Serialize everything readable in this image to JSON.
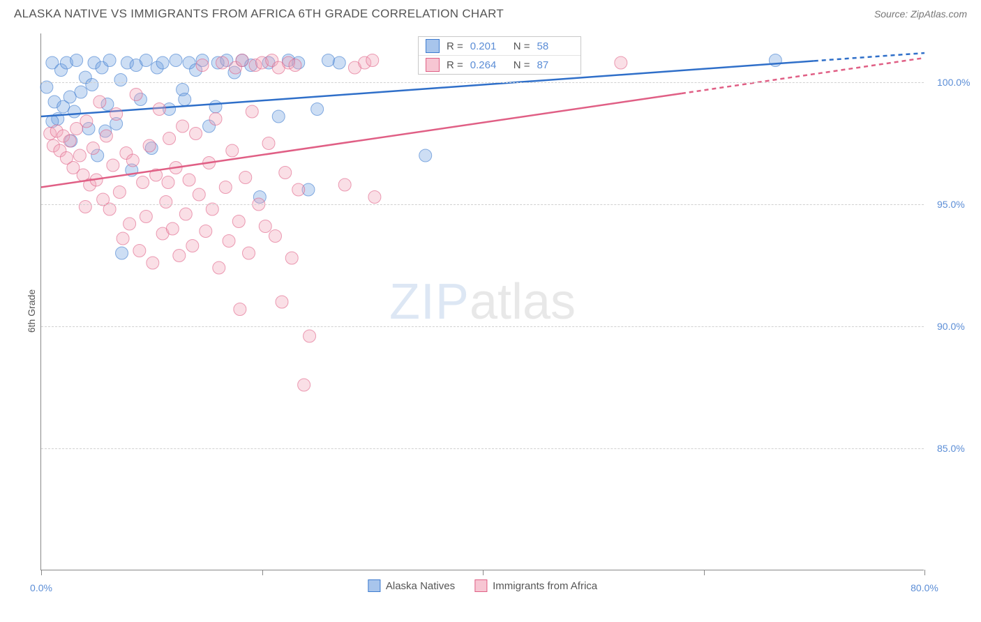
{
  "header": {
    "title": "ALASKA NATIVE VS IMMIGRANTS FROM AFRICA 6TH GRADE CORRELATION CHART",
    "source": "Source: ZipAtlas.com"
  },
  "chart": {
    "type": "scatter",
    "y_label": "6th Grade",
    "xlim": [
      0,
      80
    ],
    "ylim": [
      80,
      102
    ],
    "x_ticks": [
      0,
      20,
      40,
      60,
      80
    ],
    "x_tick_labels": [
      "0.0%",
      "",
      "",
      "",
      "80.0%"
    ],
    "y_gridlines": [
      85,
      90,
      95,
      100
    ],
    "y_tick_labels": [
      "85.0%",
      "90.0%",
      "95.0%",
      "100.0%"
    ],
    "background_color": "#ffffff",
    "grid_color": "#d0d0d0",
    "axis_color": "#888888",
    "tick_label_color": "#5b8dd6",
    "marker_radius": 9,
    "marker_opacity": 0.35,
    "series": [
      {
        "name": "Alaska Natives",
        "color": "#6fa0e0",
        "stroke": "#3d7bcf",
        "trend": {
          "x1": 0,
          "y1": 98.6,
          "x2": 80,
          "y2": 101.2,
          "dash_from_x": 70,
          "color": "#2f6fc9",
          "width": 2.5
        },
        "points": [
          [
            0.5,
            99.8
          ],
          [
            1.0,
            100.8
          ],
          [
            1.2,
            99.2
          ],
          [
            1.5,
            98.5
          ],
          [
            1.8,
            100.5
          ],
          [
            2.0,
            99.0
          ],
          [
            2.3,
            100.8
          ],
          [
            2.6,
            99.4
          ],
          [
            3.0,
            98.8
          ],
          [
            3.2,
            100.9
          ],
          [
            3.6,
            99.6
          ],
          [
            4.0,
            100.2
          ],
          [
            4.3,
            98.1
          ],
          [
            4.8,
            100.8
          ],
          [
            5.1,
            97.0
          ],
          [
            5.5,
            100.6
          ],
          [
            6.0,
            99.1
          ],
          [
            6.2,
            100.9
          ],
          [
            6.8,
            98.3
          ],
          [
            7.2,
            100.1
          ],
          [
            7.8,
            100.8
          ],
          [
            8.2,
            96.4
          ],
          [
            8.6,
            100.7
          ],
          [
            9.0,
            99.3
          ],
          [
            9.5,
            100.9
          ],
          [
            10.0,
            97.3
          ],
          [
            10.5,
            100.6
          ],
          [
            11.0,
            100.8
          ],
          [
            11.6,
            98.9
          ],
          [
            12.2,
            100.9
          ],
          [
            12.8,
            99.7
          ],
          [
            13.4,
            100.8
          ],
          [
            14.0,
            100.5
          ],
          [
            14.6,
            100.9
          ],
          [
            15.2,
            98.2
          ],
          [
            16.0,
            100.8
          ],
          [
            16.8,
            100.9
          ],
          [
            17.5,
            100.4
          ],
          [
            18.2,
            100.9
          ],
          [
            19.0,
            100.7
          ],
          [
            19.8,
            95.3
          ],
          [
            20.6,
            100.8
          ],
          [
            21.5,
            98.6
          ],
          [
            22.4,
            100.9
          ],
          [
            23.3,
            100.8
          ],
          [
            24.2,
            95.6
          ],
          [
            25.0,
            98.9
          ],
          [
            26.0,
            100.9
          ],
          [
            27.0,
            100.8
          ],
          [
            34.8,
            97.0
          ],
          [
            7.3,
            93.0
          ],
          [
            2.7,
            97.6
          ],
          [
            4.6,
            99.9
          ],
          [
            5.8,
            98.0
          ],
          [
            13.0,
            99.3
          ],
          [
            15.8,
            99.0
          ],
          [
            66.5,
            100.9
          ],
          [
            1.0,
            98.4
          ]
        ]
      },
      {
        "name": "Immigrants from Africa",
        "color": "#f2a4b8",
        "stroke": "#e05f85",
        "trend": {
          "x1": 0,
          "y1": 95.7,
          "x2": 80,
          "y2": 101.0,
          "dash_from_x": 58,
          "color": "#e05f85",
          "width": 2.5
        },
        "points": [
          [
            0.8,
            97.9
          ],
          [
            1.1,
            97.4
          ],
          [
            1.4,
            98.0
          ],
          [
            1.7,
            97.2
          ],
          [
            2.0,
            97.8
          ],
          [
            2.3,
            96.9
          ],
          [
            2.6,
            97.6
          ],
          [
            2.9,
            96.5
          ],
          [
            3.2,
            98.1
          ],
          [
            3.5,
            97.0
          ],
          [
            3.8,
            96.2
          ],
          [
            4.1,
            98.4
          ],
          [
            4.4,
            95.8
          ],
          [
            4.7,
            97.3
          ],
          [
            5.0,
            96.0
          ],
          [
            5.3,
            99.2
          ],
          [
            5.6,
            95.2
          ],
          [
            5.9,
            97.8
          ],
          [
            6.2,
            94.8
          ],
          [
            6.5,
            96.6
          ],
          [
            6.8,
            98.7
          ],
          [
            7.1,
            95.5
          ],
          [
            7.4,
            93.6
          ],
          [
            7.7,
            97.1
          ],
          [
            8.0,
            94.2
          ],
          [
            8.3,
            96.8
          ],
          [
            8.6,
            99.5
          ],
          [
            8.9,
            93.1
          ],
          [
            9.2,
            95.9
          ],
          [
            9.5,
            94.5
          ],
          [
            9.8,
            97.4
          ],
          [
            10.1,
            92.6
          ],
          [
            10.4,
            96.2
          ],
          [
            10.7,
            98.9
          ],
          [
            11.0,
            93.8
          ],
          [
            11.3,
            95.1
          ],
          [
            11.6,
            97.7
          ],
          [
            11.9,
            94.0
          ],
          [
            12.2,
            96.5
          ],
          [
            12.5,
            92.9
          ],
          [
            12.8,
            98.2
          ],
          [
            13.1,
            94.6
          ],
          [
            13.4,
            96.0
          ],
          [
            13.7,
            93.3
          ],
          [
            14.0,
            97.9
          ],
          [
            14.3,
            95.4
          ],
          [
            14.6,
            100.7
          ],
          [
            14.9,
            93.9
          ],
          [
            15.2,
            96.7
          ],
          [
            15.5,
            94.8
          ],
          [
            15.8,
            98.5
          ],
          [
            16.1,
            92.4
          ],
          [
            16.4,
            100.8
          ],
          [
            16.7,
            95.7
          ],
          [
            17.0,
            93.5
          ],
          [
            17.3,
            97.2
          ],
          [
            17.6,
            100.6
          ],
          [
            17.9,
            94.3
          ],
          [
            18.2,
            100.9
          ],
          [
            18.5,
            96.1
          ],
          [
            18.8,
            93.0
          ],
          [
            19.1,
            98.8
          ],
          [
            19.4,
            100.7
          ],
          [
            19.7,
            95.0
          ],
          [
            20.0,
            100.8
          ],
          [
            20.3,
            94.1
          ],
          [
            20.6,
            97.5
          ],
          [
            20.9,
            100.9
          ],
          [
            21.2,
            93.7
          ],
          [
            21.5,
            100.6
          ],
          [
            21.8,
            91.0
          ],
          [
            22.1,
            96.3
          ],
          [
            22.4,
            100.8
          ],
          [
            22.7,
            92.8
          ],
          [
            23.0,
            100.7
          ],
          [
            23.3,
            95.6
          ],
          [
            27.5,
            95.8
          ],
          [
            28.4,
            100.6
          ],
          [
            29.3,
            100.8
          ],
          [
            30.2,
            95.3
          ],
          [
            18.0,
            90.7
          ],
          [
            24.3,
            89.6
          ],
          [
            23.8,
            87.6
          ],
          [
            11.5,
            95.9
          ],
          [
            52.5,
            100.8
          ],
          [
            30.0,
            100.9
          ],
          [
            4.0,
            94.9
          ]
        ]
      }
    ],
    "stats_box": {
      "rows": [
        {
          "swatch_fill": "#a8c5ec",
          "swatch_border": "#3d7bcf",
          "r": "0.201",
          "n": "58"
        },
        {
          "swatch_fill": "#f7c6d3",
          "swatch_border": "#e05f85",
          "r": "0.264",
          "n": "87"
        }
      ],
      "labels": {
        "r": "R  =",
        "n": "N  ="
      }
    },
    "watermark": {
      "zip": "ZIP",
      "atlas": "atlas"
    },
    "legend": [
      {
        "fill": "#a8c5ec",
        "border": "#3d7bcf",
        "label": "Alaska Natives"
      },
      {
        "fill": "#f7c6d3",
        "border": "#e05f85",
        "label": "Immigrants from Africa"
      }
    ]
  }
}
